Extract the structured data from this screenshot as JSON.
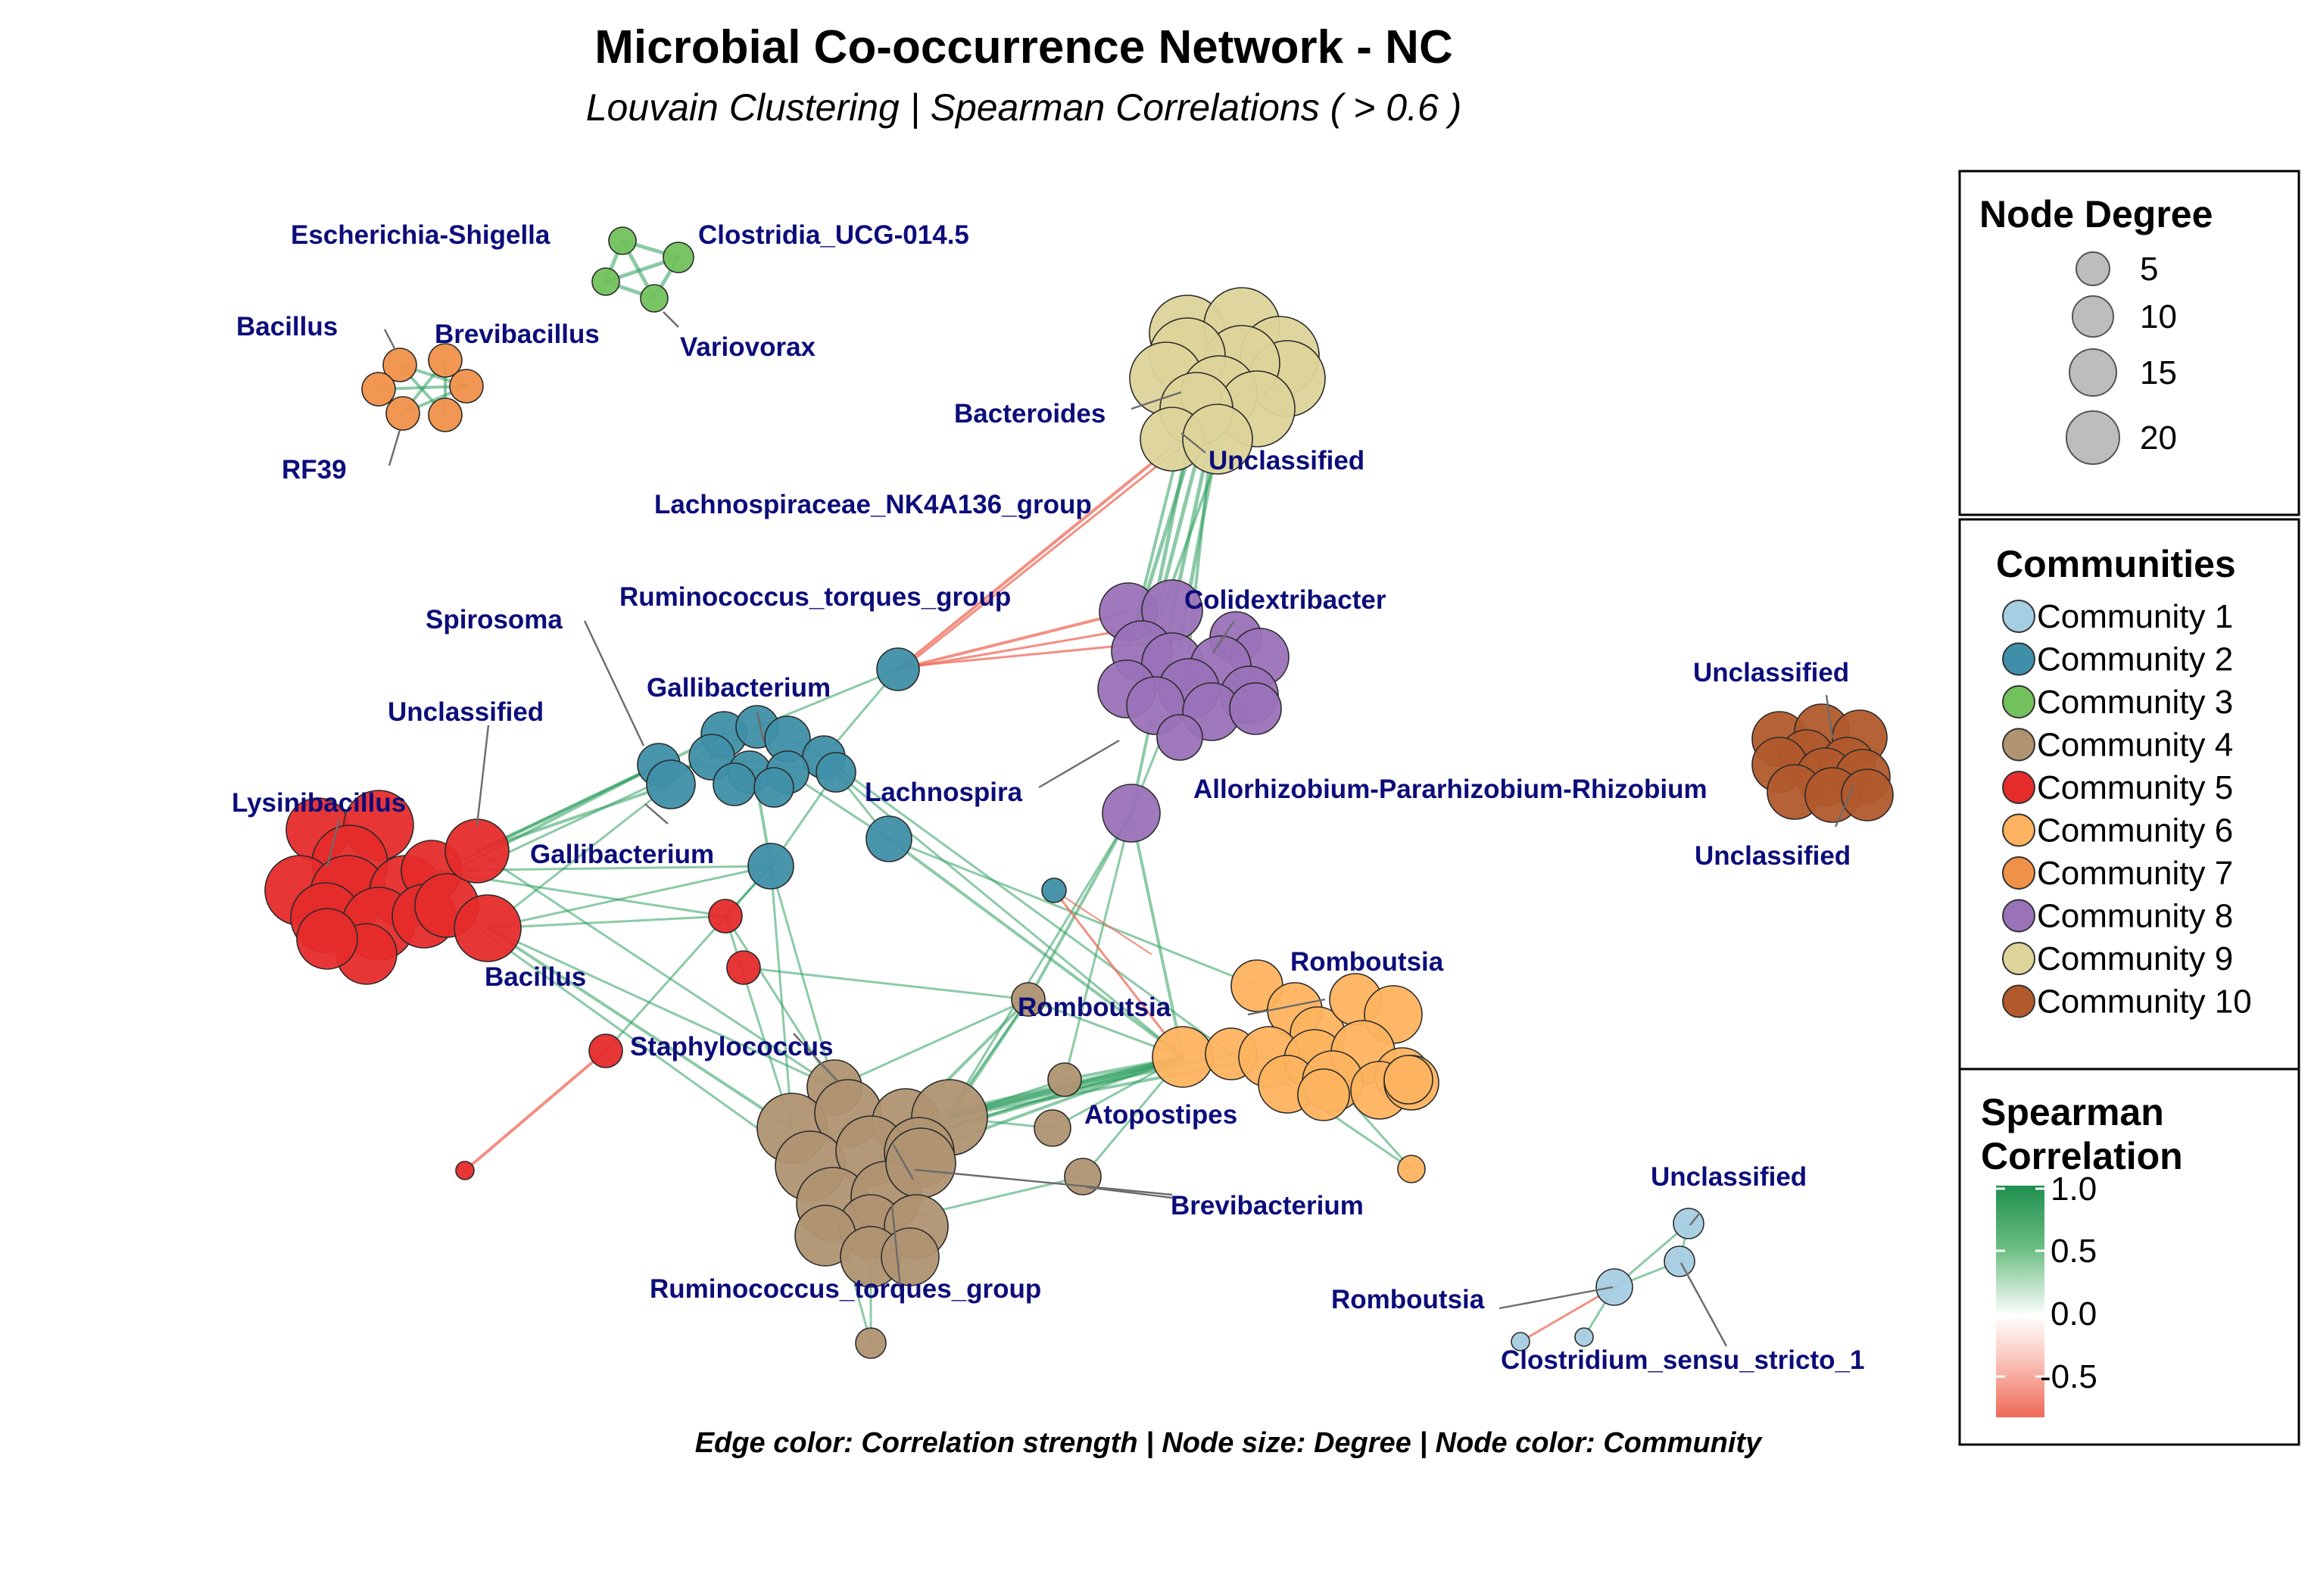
{
  "title": "Microbial Co-occurrence Network - NC",
  "subtitle": "Louvain Clustering | Spearman Correlations ( > 0.6 )",
  "caption": "Edge color: Correlation strength | Node size: Degree | Node color: Community",
  "colors": {
    "community_1": "#a6cee3",
    "community_2": "#3f8fa8",
    "community_3": "#72c15c",
    "community_4": "#b09472",
    "community_5": "#e62b2b",
    "community_6": "#fdb35f",
    "community_7": "#f0914a",
    "community_8": "#9a72b8",
    "community_9": "#ddd49a",
    "community_10": "#b15a2c",
    "label": "#0c0c7a",
    "edge_positive": "#2e9e5e",
    "edge_negative": "#ef6a58"
  },
  "labels": {
    "escherichia": "Escherichia-Shigella",
    "clostridia": "Clostridia_UCG-014.5",
    "bacillus_top": "Bacillus",
    "brevibacillus": "Brevibacillus",
    "variovorax": "Variovorax",
    "rf39": "RF39",
    "bacteroides": "Bacteroides",
    "unclassified_9": "Unclassified",
    "lachno_nk4a136": "Lachnospiraceae_NK4A136_group",
    "rumino_torques_2": "Ruminococcus_torques_group",
    "colidextribacter": "Colidextribacter",
    "spirosoma": "Spirosoma",
    "gallibacterium_1": "Gallibacterium",
    "unclassified_5": "Unclassified",
    "unclassified_10a": "Unclassified",
    "lysinibacillus": "Lysinibacillus",
    "lachnospira": "Lachnospira",
    "allorhizobium": "Allorhizobium-Pararhizobium-Rhizobium",
    "gallibacterium_2": "Gallibacterium",
    "unclassified_10b": "Unclassified",
    "bacillus_5": "Bacillus",
    "romboutsia_6": "Romboutsia",
    "romboutsia_4": "Romboutsia",
    "staphylococcus": "Staphylococcus",
    "atopostipes": "Atopostipes",
    "brevibacterium": "Brevibacterium",
    "unclassified_1": "Unclassified",
    "rumino_torques_4": "Ruminococcus_torques_group",
    "romboutsia_1": "Romboutsia",
    "clostridium_ss1": "Clostridium_sensu_stricto_1"
  },
  "legend": {
    "degree_title": "Node Degree",
    "degree_values": [
      "5",
      "10",
      "15",
      "20"
    ],
    "communities_title": "Communities",
    "communities": [
      {
        "label": "Community 1",
        "color": "#a6cee3"
      },
      {
        "label": "Community 2",
        "color": "#3f8fa8"
      },
      {
        "label": "Community 3",
        "color": "#72c15c"
      },
      {
        "label": "Community 4",
        "color": "#b09472"
      },
      {
        "label": "Community 5",
        "color": "#e62b2b"
      },
      {
        "label": "Community 6",
        "color": "#fdb35f"
      },
      {
        "label": "Community 7",
        "color": "#f0914a"
      },
      {
        "label": "Community 8",
        "color": "#9a72b8"
      },
      {
        "label": "Community 9",
        "color": "#ddd49a"
      },
      {
        "label": "Community 10",
        "color": "#b15a2c"
      }
    ],
    "corr_title_line1": "Spearman",
    "corr_title_line2": "Correlation",
    "corr_ticks": [
      "1.0",
      "0.5",
      "0.0",
      "-0.5"
    ]
  }
}
